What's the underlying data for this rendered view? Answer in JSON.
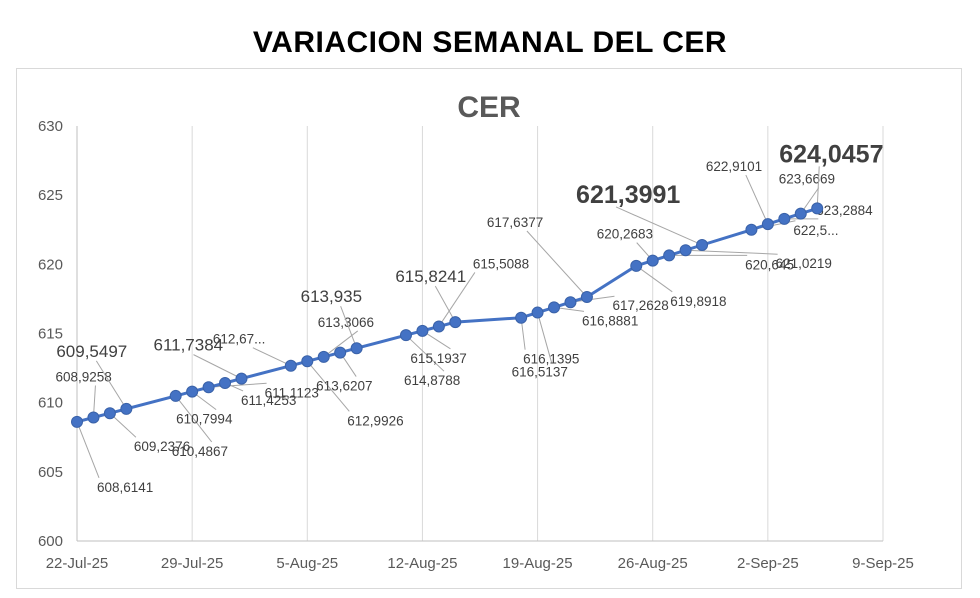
{
  "page_title": "VARIACION SEMANAL DEL CER",
  "chart_data": {
    "type": "line",
    "title": "CER",
    "xlabel": "",
    "ylabel": "",
    "ylim": [
      600,
      630
    ],
    "yticks": [
      "600",
      "605",
      "610",
      "615",
      "620",
      "625",
      "630"
    ],
    "xticks": [
      "22-Jul-25",
      "29-Jul-25",
      "5-Aug-25",
      "12-Aug-25",
      "19-Aug-25",
      "26-Aug-25",
      "2-Sep-25",
      "9-Sep-25"
    ],
    "xlim_days": [
      0,
      49
    ],
    "grid": "vertical",
    "line_color": "#4472C4",
    "series": [
      {
        "points": [
          {
            "day": 0,
            "value": 608.6141,
            "label": "608,6141"
          },
          {
            "day": 1,
            "value": 608.9258,
            "label": "608,9258"
          },
          {
            "day": 2,
            "value": 609.2376,
            "label": "609,2376"
          },
          {
            "day": 3,
            "value": 609.5497,
            "label": "609,5497"
          },
          {
            "day": 6,
            "value": 610.4867,
            "label": "610,4867"
          },
          {
            "day": 7,
            "value": 610.7994,
            "label": "610,7994"
          },
          {
            "day": 8,
            "value": 611.1123,
            "label": "611,1123"
          },
          {
            "day": 9,
            "value": 611.4253,
            "label": "611,4253"
          },
          {
            "day": 10,
            "value": 611.7384,
            "label": "611,7384"
          },
          {
            "day": 13,
            "value": 612.67,
            "label": "612,67..."
          },
          {
            "day": 14,
            "value": 612.9926,
            "label": "612,9926"
          },
          {
            "day": 15,
            "value": 613.3066,
            "label": "613,3066"
          },
          {
            "day": 16,
            "value": 613.6207,
            "label": "613,6207"
          },
          {
            "day": 17,
            "value": 613.935,
            "label": "613,935"
          },
          {
            "day": 20,
            "value": 614.8788,
            "label": "614,8788"
          },
          {
            "day": 21,
            "value": 615.1937,
            "label": "615,1937"
          },
          {
            "day": 22,
            "value": 615.5088,
            "label": "615,5088"
          },
          {
            "day": 23,
            "value": 615.8241,
            "label": "615,8241"
          },
          {
            "day": 27,
            "value": 616.1395,
            "label": "616,1395"
          },
          {
            "day": 28,
            "value": 616.5137,
            "label": "616,5137"
          },
          {
            "day": 29,
            "value": 616.8881,
            "label": "616,8881"
          },
          {
            "day": 30,
            "value": 617.2628,
            "label": "617,2628"
          },
          {
            "day": 31,
            "value": 617.6377,
            "label": "617,6377"
          },
          {
            "day": 34,
            "value": 619.8918,
            "label": "619,8918"
          },
          {
            "day": 35,
            "value": 620.2683,
            "label": "620,2683"
          },
          {
            "day": 36,
            "value": 620.645,
            "label": "620,645"
          },
          {
            "day": 37,
            "value": 621.0219,
            "label": "621,0219"
          },
          {
            "day": 38,
            "value": 621.3991,
            "label": "621,3991"
          },
          {
            "day": 41,
            "value": 622.5,
            "label": "622,5..."
          },
          {
            "day": 42,
            "value": 622.9101,
            "label": "622,9101"
          },
          {
            "day": 43,
            "value": 623.2884,
            "label": "623,2884"
          },
          {
            "day": 44,
            "value": 623.6669,
            "label": "623,6669"
          },
          {
            "day": 45,
            "value": 624.0457,
            "label": "624,0457"
          }
        ]
      }
    ]
  }
}
